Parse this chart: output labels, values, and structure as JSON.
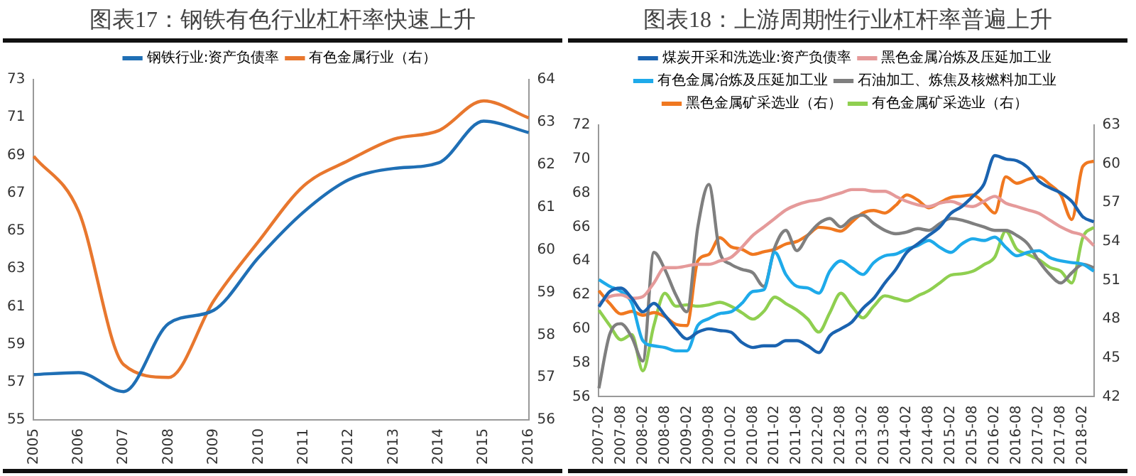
{
  "chart_data": [
    {
      "type": "line",
      "title": "图表17：钢铁有色行业杠杆率快速上升",
      "categories": [
        "2005",
        "2006",
        "2007",
        "2008",
        "2009",
        "2010",
        "2011",
        "2012",
        "2013",
        "2014",
        "2015",
        "2016"
      ],
      "series": [
        {
          "name": "钢铁行业:资产负债率",
          "color": "#1f6fb5",
          "values": [
            57.4,
            57.5,
            56.5,
            60.1,
            60.8,
            63.6,
            66.0,
            67.7,
            68.3,
            68.6,
            70.8,
            70.2
          ]
        },
        {
          "name": "有色金属行业（右）",
          "color": "#e8772e",
          "axis": "y2",
          "values": [
            62.2,
            60.9,
            57.3,
            57.0,
            58.8,
            60.2,
            61.5,
            62.1,
            62.6,
            62.8,
            63.5,
            63.1
          ]
        }
      ],
      "ylim": [
        55,
        73
      ],
      "yticks": [
        55,
        57,
        59,
        61,
        63,
        65,
        67,
        69,
        71,
        73
      ],
      "y2lim": [
        56,
        64
      ],
      "y2ticks": [
        56,
        57,
        58,
        59,
        60,
        61,
        62,
        63,
        64
      ],
      "legend": "top",
      "marker": "none",
      "line_style": "solid"
    },
    {
      "type": "line",
      "title": "图表18：上游周期性行业杠杆率普遍上升",
      "categories": [
        "2007-02",
        null,
        "2007-08",
        null,
        "2008-02",
        null,
        "2008-08",
        null,
        "2009-02",
        null,
        "2009-08",
        null,
        "2010-02",
        null,
        "2010-08",
        null,
        "2011-02",
        null,
        "2011-08",
        null,
        "2012-02",
        null,
        "2012-08",
        null,
        "2013-02",
        null,
        "2013-08",
        null,
        "2014-02",
        null,
        "2014-08",
        null,
        "2015-02",
        null,
        "2015-08",
        null,
        "2016-02",
        null,
        "2016-08",
        null,
        "2017-02",
        null,
        "2017-08",
        null,
        "2018-02",
        null
      ],
      "series": [
        {
          "name": "煤炭开采和洗选业:资产负债率",
          "color": "#1a63b0",
          "values": [
            61.3,
            62.2,
            62.4,
            61.8,
            61.0,
            61.5,
            60.8,
            60.0,
            59.4,
            59.8,
            60.0,
            59.9,
            59.8,
            59.2,
            58.9,
            59.0,
            59.0,
            59.3,
            59.3,
            59.0,
            58.6,
            59.6,
            60.0,
            60.4,
            61.2,
            61.8,
            62.7,
            63.5,
            64.5,
            65.0,
            65.5,
            66.0,
            66.8,
            67.2,
            67.8,
            68.5,
            70.2,
            70.0,
            69.9,
            69.5,
            68.7,
            68.3,
            68.0,
            67.5,
            66.6,
            66.3
          ]
        },
        {
          "name": "黑色金属冶炼及压延加工业",
          "color": "#e59a9a",
          "values": [
            61.5,
            61.9,
            62.0,
            61.8,
            61.9,
            62.7,
            63.6,
            63.6,
            63.7,
            63.8,
            63.8,
            64.0,
            64.2,
            64.8,
            65.5,
            66.0,
            66.5,
            67.0,
            67.3,
            67.5,
            67.6,
            67.8,
            68.0,
            68.2,
            68.2,
            68.1,
            68.1,
            67.8,
            67.5,
            67.3,
            67.2,
            67.4,
            67.5,
            67.3,
            67.2,
            67.5,
            67.8,
            67.4,
            67.2,
            67.0,
            66.8,
            66.4,
            66.0,
            65.7,
            65.5,
            64.9
          ]
        },
        {
          "name": "有色金属冶炼及压延加工业",
          "color": "#1eaaea",
          "values": [
            62.9,
            62.5,
            62.2,
            61.5,
            59.3,
            59.0,
            58.9,
            58.7,
            58.7,
            60.2,
            60.6,
            60.9,
            61.0,
            61.5,
            62.2,
            62.3,
            64.5,
            63.2,
            62.5,
            62.4,
            62.1,
            63.4,
            64.0,
            63.6,
            63.2,
            63.9,
            64.3,
            64.4,
            64.7,
            64.9,
            65.2,
            64.8,
            64.5,
            65.0,
            65.3,
            65.2,
            65.4,
            64.8,
            64.3,
            64.5,
            64.6,
            64.2,
            64.0,
            63.9,
            63.8,
            63.4
          ]
        },
        {
          "name": "石油加工、炼焦及核燃料加工业",
          "color": "#7f7f7f",
          "values": [
            56.5,
            59.7,
            60.3,
            59.5,
            58.1,
            64.5,
            63.5,
            62.0,
            61.0,
            66.0,
            68.5,
            64.5,
            63.8,
            63.5,
            63.3,
            62.5,
            64.8,
            65.8,
            64.6,
            65.5,
            66.2,
            66.5,
            66.0,
            66.5,
            66.7,
            66.2,
            65.8,
            65.6,
            65.7,
            65.9,
            65.8,
            66.2,
            66.5,
            66.4,
            66.2,
            66.0,
            65.8,
            65.8,
            65.5,
            65.0,
            64.0,
            63.2,
            62.7,
            63.3,
            63.8,
            63.6
          ]
        },
        {
          "name": "黑色金属矿采选业（右）",
          "color": "#f07820",
          "axis": "y2",
          "values": [
            50.2,
            49.2,
            48.4,
            48.6,
            48.3,
            48.5,
            48.2,
            47.6,
            47.5,
            52.5,
            53.0,
            54.3,
            53.6,
            53.4,
            53.0,
            53.2,
            53.4,
            53.8,
            54.0,
            54.5,
            55.1,
            55.0,
            54.8,
            55.5,
            56.2,
            56.4,
            56.2,
            56.8,
            57.6,
            57.2,
            56.6,
            57.0,
            57.4,
            57.5,
            57.6,
            57.0,
            56.2,
            59.0,
            58.5,
            58.8,
            59.0,
            58.4,
            57.6,
            55.7,
            59.8,
            60.2
          ]
        },
        {
          "name": "有色金属矿采选业（右）",
          "color": "#8fcf50",
          "axis": "y2",
          "values": [
            48.7,
            47.5,
            46.4,
            46.8,
            44.0,
            47.5,
            50.0,
            49.0,
            49.1,
            49.0,
            49.1,
            49.3,
            49.0,
            48.5,
            48.0,
            48.6,
            49.7,
            49.2,
            48.7,
            48.0,
            47.0,
            48.5,
            50.0,
            49.0,
            48.1,
            49.0,
            49.8,
            49.6,
            49.4,
            49.8,
            50.2,
            50.8,
            51.4,
            51.5,
            51.7,
            52.2,
            52.8,
            54.8,
            53.4,
            53.0,
            52.6,
            52.0,
            51.7,
            50.8,
            54.3,
            55.1
          ]
        }
      ],
      "ylim": [
        56,
        72
      ],
      "yticks": [
        56,
        58,
        60,
        62,
        64,
        66,
        68,
        70,
        72
      ],
      "y2lim": [
        42,
        63
      ],
      "y2ticks": [
        42,
        45,
        48,
        51,
        54,
        57,
        60,
        63
      ],
      "legend": "top",
      "marker": "none",
      "line_style": "solid"
    }
  ]
}
